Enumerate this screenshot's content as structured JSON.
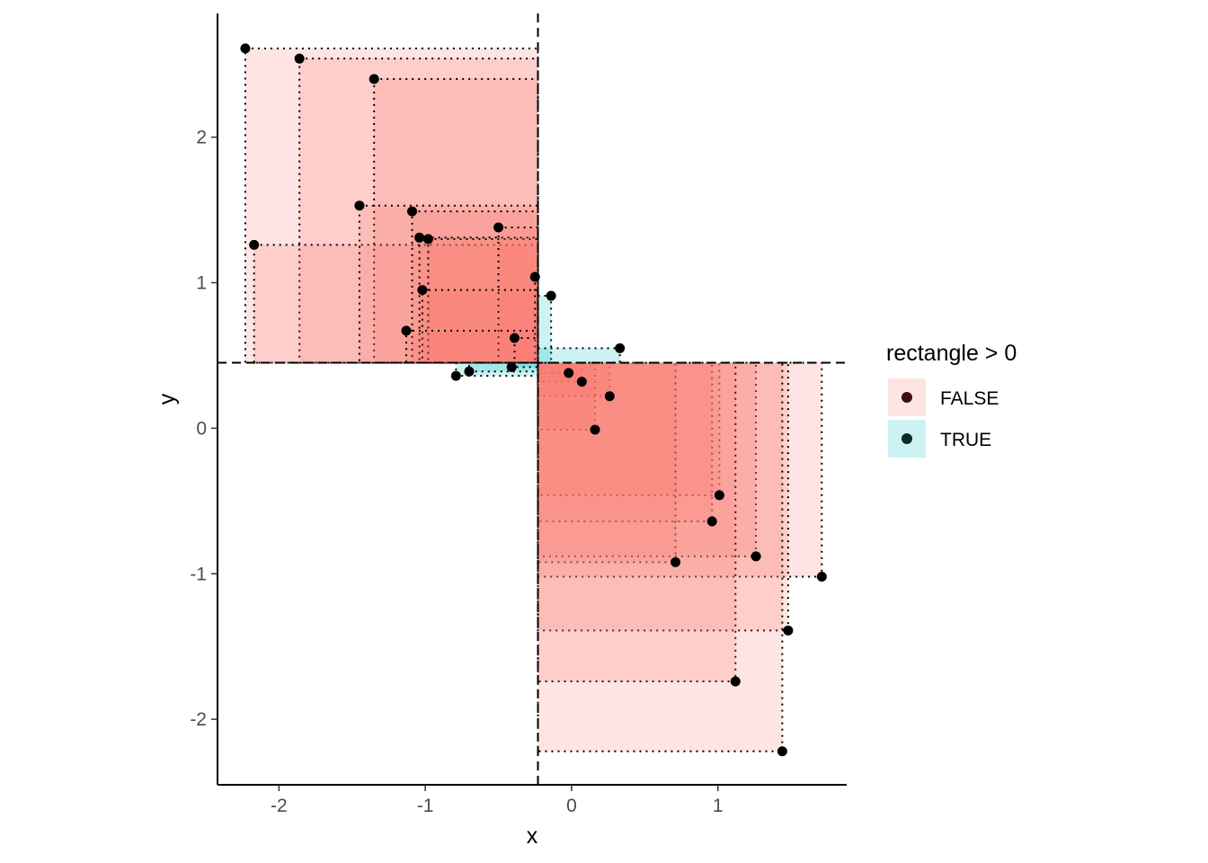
{
  "chart_data": {
    "type": "scatter",
    "title": "",
    "xlabel": "x",
    "ylabel": "y",
    "xlim": [
      -2.42,
      1.88
    ],
    "ylim": [
      -2.45,
      2.85
    ],
    "x_ticks": [
      -2,
      -1,
      0,
      1
    ],
    "x_tick_labels": [
      "-2",
      "-1",
      "0",
      "1"
    ],
    "y_ticks": [
      -2,
      -1,
      0,
      1,
      2
    ],
    "y_tick_labels": [
      "-2",
      "-1",
      "0",
      "1",
      "2"
    ],
    "mean_x": -0.23,
    "mean_y": 0.45,
    "grid": false,
    "legend": {
      "title": "rectangle > 0",
      "placement": "right",
      "entries": [
        {
          "label": "FALSE",
          "fill": "#F8766D",
          "point": "#3a0f0c"
        },
        {
          "label": "TRUE",
          "fill": "#00BFC4",
          "point": "#0b2b2b"
        }
      ]
    },
    "colors": {
      "false_fill": "#F8766D",
      "true_fill": "#00BFC4",
      "point": "#000000",
      "axis": "#000000"
    },
    "series": [
      {
        "name": "FALSE",
        "points": [
          {
            "x": -2.23,
            "y": 2.61
          },
          {
            "x": -1.86,
            "y": 2.54
          },
          {
            "x": -1.35,
            "y": 2.4
          },
          {
            "x": -2.17,
            "y": 1.26
          },
          {
            "x": -1.45,
            "y": 1.53
          },
          {
            "x": -1.09,
            "y": 1.49
          },
          {
            "x": -1.04,
            "y": 1.31
          },
          {
            "x": -0.98,
            "y": 1.3
          },
          {
            "x": -0.5,
            "y": 1.38
          },
          {
            "x": -1.02,
            "y": 0.95
          },
          {
            "x": -0.25,
            "y": 1.04
          },
          {
            "x": -1.13,
            "y": 0.67
          },
          {
            "x": -0.39,
            "y": 0.62
          },
          {
            "x": -0.02,
            "y": 0.38
          },
          {
            "x": 0.07,
            "y": 0.32
          },
          {
            "x": 0.26,
            "y": 0.22
          },
          {
            "x": 0.16,
            "y": -0.01
          },
          {
            "x": 1.01,
            "y": -0.46
          },
          {
            "x": 0.96,
            "y": -0.64
          },
          {
            "x": 1.26,
            "y": -0.88
          },
          {
            "x": 0.71,
            "y": -0.92
          },
          {
            "x": 1.71,
            "y": -1.02
          },
          {
            "x": 1.48,
            "y": -1.39
          },
          {
            "x": 1.12,
            "y": -1.74
          },
          {
            "x": 1.44,
            "y": -2.22
          }
        ]
      },
      {
        "name": "TRUE",
        "points": [
          {
            "x": -0.14,
            "y": 0.91
          },
          {
            "x": 0.33,
            "y": 0.55
          },
          {
            "x": -0.79,
            "y": 0.36
          },
          {
            "x": -0.7,
            "y": 0.39
          },
          {
            "x": -0.41,
            "y": 0.42
          }
        ]
      }
    ]
  }
}
